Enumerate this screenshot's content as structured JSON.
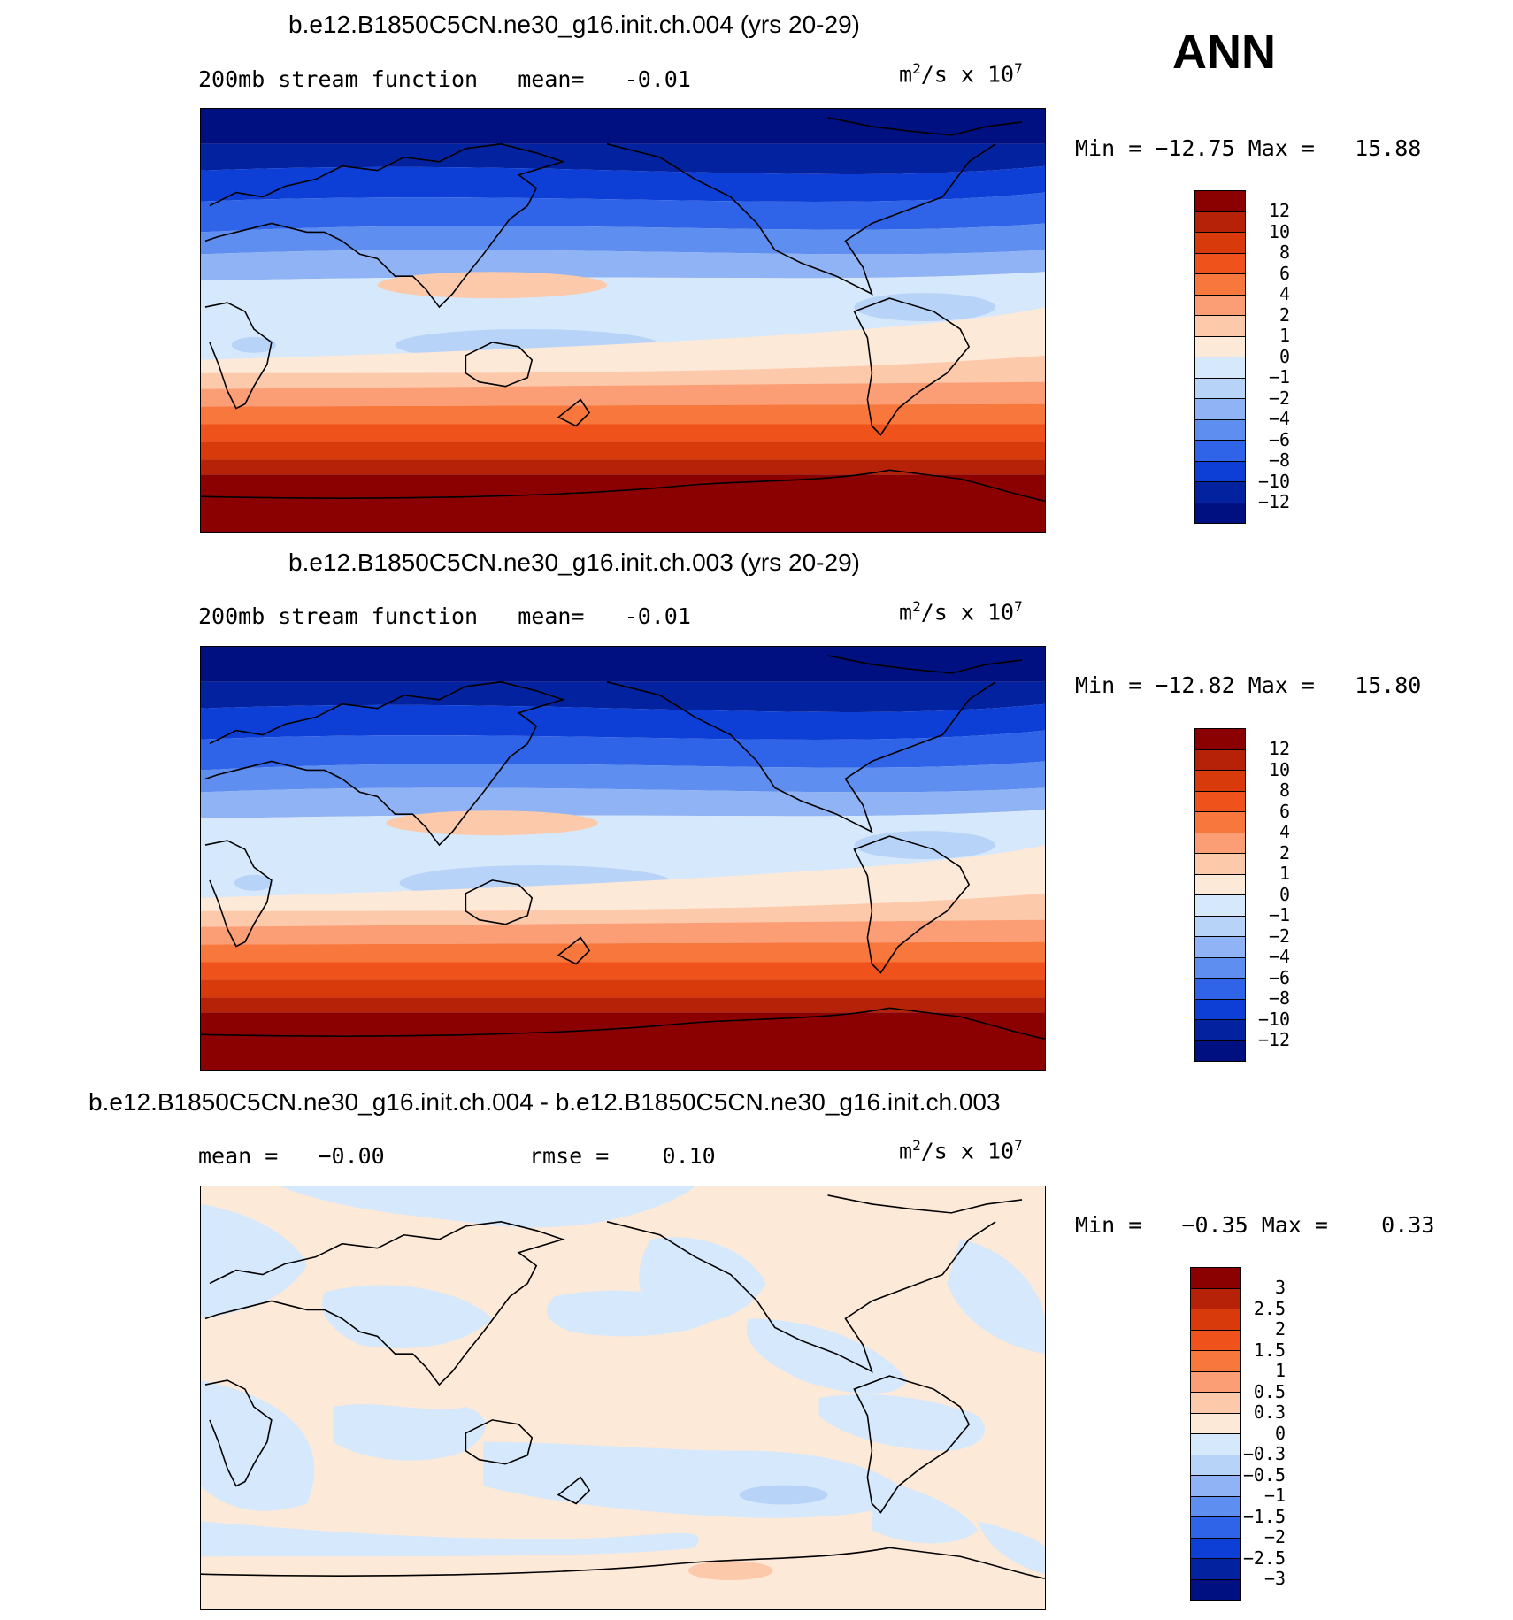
{
  "season": "ANN",
  "panels": [
    {
      "title": "b.e12.B1850C5CN.ne30_g16.init.ch.004 (yrs 20-29)",
      "left_text": "200mb stream function   mean=   -0.01",
      "units": "m",
      "units_sup1": "2",
      "units_mid": "/s x 10",
      "units_sup2": "7",
      "minmax": "Min = −12.75 Max =   15.88",
      "colorbar": {
        "labels": [
          "12",
          "10",
          "8",
          "6",
          "4",
          "2",
          "1",
          "0",
          "−1",
          "−2",
          "−4",
          "−6",
          "−8",
          "−10",
          "−12"
        ]
      }
    },
    {
      "title": "b.e12.B1850C5CN.ne30_g16.init.ch.003 (yrs 20-29)",
      "left_text": "200mb stream function   mean=   -0.01",
      "units": "m",
      "units_sup1": "2",
      "units_mid": "/s x 10",
      "units_sup2": "7",
      "minmax": "Min = −12.82 Max =   15.80",
      "colorbar": {
        "labels": [
          "12",
          "10",
          "8",
          "6",
          "4",
          "2",
          "1",
          "0",
          "−1",
          "−2",
          "−4",
          "−6",
          "−8",
          "−10",
          "−12"
        ]
      }
    },
    {
      "title": "b.e12.B1850C5CN.ne30_g16.init.ch.004 - b.e12.B1850C5CN.ne30_g16.init.ch.003",
      "left_text": "mean =   −0.00",
      "rmse_text": "rmse =    0.10",
      "units": "m",
      "units_sup1": "2",
      "units_mid": "/s x 10",
      "units_sup2": "7",
      "minmax": "Min =   −0.35 Max =    0.33",
      "colorbar": {
        "labels": [
          "3",
          "2.5",
          "2",
          "1.5",
          "1",
          "0.5",
          "0.3",
          "0",
          "−0.3",
          "−0.5",
          "−1",
          "−1.5",
          "−2",
          "−2.5",
          "−3"
        ]
      }
    }
  ],
  "palette": [
    "#8b0000",
    "#b52207",
    "#d93a0b",
    "#f0521b",
    "#f7773d",
    "#fb9e76",
    "#fcc9ab",
    "#fde9d8",
    "#d6e8fb",
    "#b8d3f8",
    "#8fb3f4",
    "#5e8ef0",
    "#2f64e8",
    "#0d3fd6",
    "#03229f",
    "#001080"
  ]
}
